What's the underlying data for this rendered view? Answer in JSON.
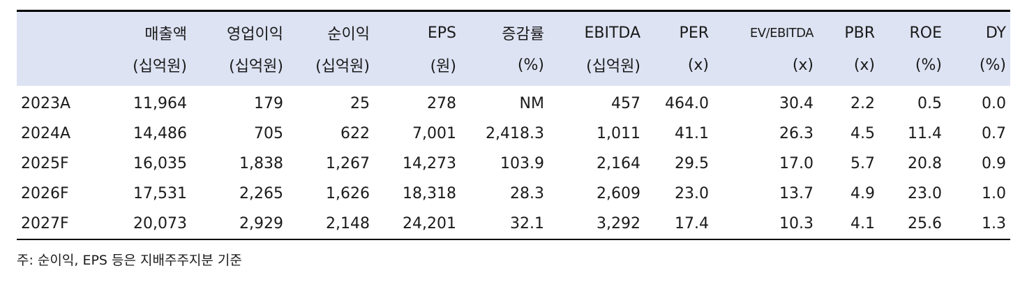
{
  "table": {
    "columns": [
      {
        "name": "",
        "unit": ""
      },
      {
        "name": "매출액",
        "unit": "(십억원)"
      },
      {
        "name": "영업이익",
        "unit": "(십억원)"
      },
      {
        "name": "순이익",
        "unit": "(십억원)"
      },
      {
        "name": "EPS",
        "unit": "(원)"
      },
      {
        "name": "증감률",
        "unit": "(%)"
      },
      {
        "name": "EBITDA",
        "unit": "(십억원)"
      },
      {
        "name": "PER",
        "unit": "(x)"
      },
      {
        "name": "EV/EBITDA",
        "unit": "(x)"
      },
      {
        "name": "PBR",
        "unit": "(x)"
      },
      {
        "name": "ROE",
        "unit": "(%)"
      },
      {
        "name": "DY",
        "unit": "(%)"
      }
    ],
    "rows": [
      [
        "2023A",
        "11,964",
        "179",
        "25",
        "278",
        "NM",
        "457",
        "464.0",
        "30.4",
        "2.2",
        "0.5",
        "0.0"
      ],
      [
        "2024A",
        "14,486",
        "705",
        "622",
        "7,001",
        "2,418.3",
        "1,011",
        "41.1",
        "26.3",
        "4.5",
        "11.4",
        "0.7"
      ],
      [
        "2025F",
        "16,035",
        "1,838",
        "1,267",
        "14,273",
        "103.9",
        "2,164",
        "29.5",
        "17.0",
        "5.7",
        "20.8",
        "0.9"
      ],
      [
        "2026F",
        "17,531",
        "2,265",
        "1,626",
        "18,318",
        "28.3",
        "2,609",
        "23.0",
        "13.7",
        "4.9",
        "23.0",
        "1.0"
      ],
      [
        "2027F",
        "20,073",
        "2,929",
        "2,148",
        "24,201",
        "32.1",
        "3,292",
        "17.4",
        "10.3",
        "4.1",
        "25.6",
        "1.3"
      ]
    ]
  },
  "note": "주: 순이익, EPS 등은 지배주주지분 기준",
  "colors": {
    "header_bg": "#dde3f3",
    "rule": "#000000"
  }
}
